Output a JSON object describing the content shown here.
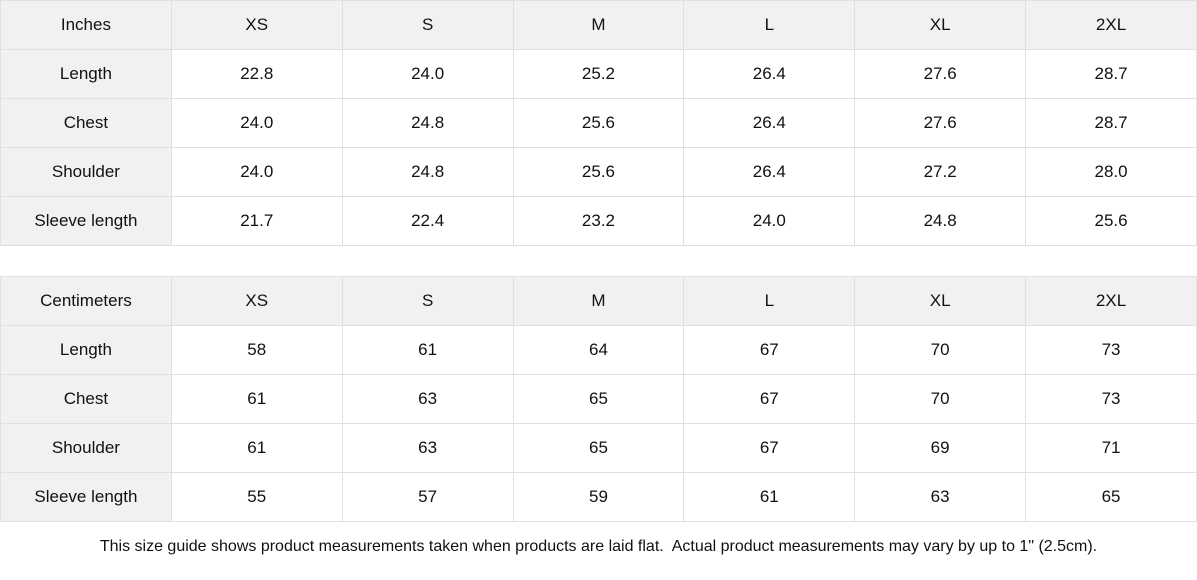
{
  "tables": [
    {
      "unit_label": "Inches",
      "sizes": [
        "XS",
        "S",
        "M",
        "L",
        "XL",
        "2XL"
      ],
      "rows": [
        {
          "label": "Length",
          "values": [
            "22.8",
            "24.0",
            "25.2",
            "26.4",
            "27.6",
            "28.7"
          ]
        },
        {
          "label": "Chest",
          "values": [
            "24.0",
            "24.8",
            "25.6",
            "26.4",
            "27.6",
            "28.7"
          ]
        },
        {
          "label": "Shoulder",
          "values": [
            "24.0",
            "24.8",
            "25.6",
            "26.4",
            "27.2",
            "28.0"
          ]
        },
        {
          "label": "Sleeve length",
          "values": [
            "21.7",
            "22.4",
            "23.2",
            "24.0",
            "24.8",
            "25.6"
          ]
        }
      ]
    },
    {
      "unit_label": "Centimeters",
      "sizes": [
        "XS",
        "S",
        "M",
        "L",
        "XL",
        "2XL"
      ],
      "rows": [
        {
          "label": "Length",
          "values": [
            "58",
            "61",
            "64",
            "67",
            "70",
            "73"
          ]
        },
        {
          "label": "Chest",
          "values": [
            "61",
            "63",
            "65",
            "67",
            "70",
            "73"
          ]
        },
        {
          "label": "Shoulder",
          "values": [
            "61",
            "63",
            "65",
            "67",
            "69",
            "71"
          ]
        },
        {
          "label": "Sleeve length",
          "values": [
            "55",
            "57",
            "59",
            "61",
            "63",
            "65"
          ]
        }
      ]
    }
  ],
  "footnote": "This size guide shows product measurements taken when products are laid flat.  Actual product measurements may vary by up to 1\" (2.5cm).",
  "colors": {
    "header_bg": "#f1f1f1",
    "cell_bg": "#ffffff",
    "border": "#e0e0e0",
    "text": "#111111"
  }
}
